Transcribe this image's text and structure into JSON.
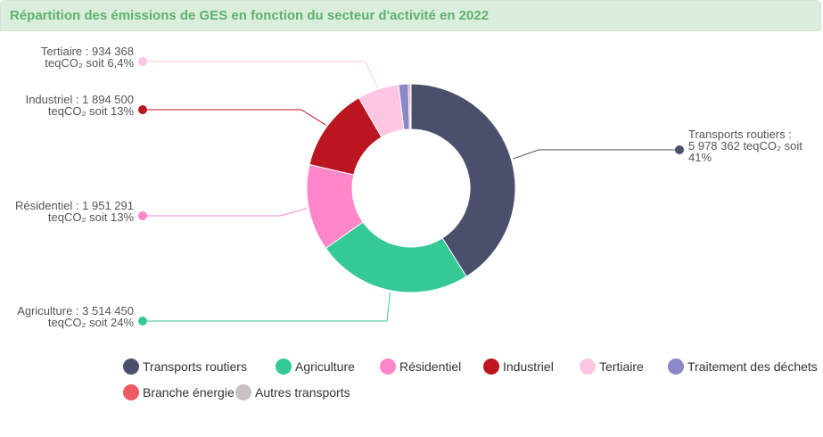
{
  "title": "Répartition des émissions de GES en fonction du secteur d'activité en 2022",
  "chart_data": {
    "type": "pie",
    "series": [
      {
        "name": "Transports routiers",
        "value": 5978362,
        "label_line1": "Transports routiers :",
        "label_line2": "5 978 362 teqCO₂ soit",
        "label_line3": "41%",
        "color": "#4a506b"
      },
      {
        "name": "Agriculture",
        "value": 3514450,
        "label_line1": "Agriculture : 3 514 450",
        "label_line2": "teqCO₂ soit 24%",
        "color": "#35c995"
      },
      {
        "name": "Résidentiel",
        "value": 1951291,
        "label_line1": "Résidentiel : 1 951 291",
        "label_line2": "teqCO₂ soit 13%",
        "color": "#ff86c8"
      },
      {
        "name": "Industriel",
        "value": 1894500,
        "label_line1": "Industriel : 1 894 500",
        "label_line2": "teqCO₂ soit 13%",
        "color": "#bb1520"
      },
      {
        "name": "Tertiaire",
        "value": 934368,
        "label_line1": "Tertiaire : 934 368",
        "label_line2": "teqCO₂ soit 6,4%",
        "color": "#ffc6e4"
      },
      {
        "name": "Traitement des déchets",
        "value": 220000,
        "color": "#8b88c8"
      },
      {
        "name": "Branche énergie",
        "value": 40000,
        "color": "#ef5b64"
      },
      {
        "name": "Autres transports",
        "value": 20000,
        "color": "#cbbfc6"
      }
    ]
  }
}
